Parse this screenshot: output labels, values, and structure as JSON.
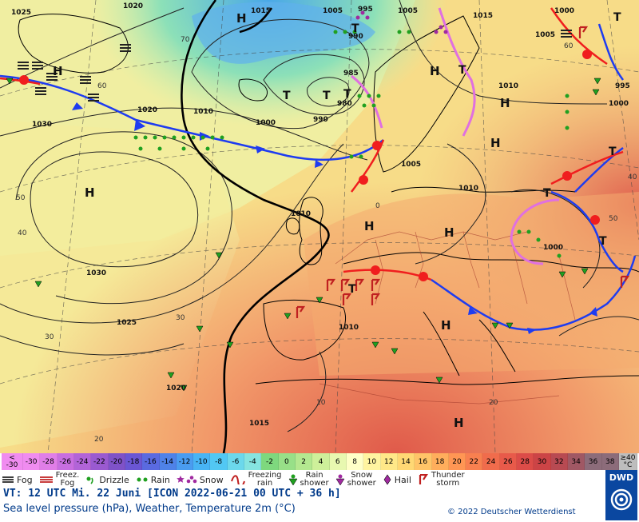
{
  "map": {
    "pressure_labels": [
      "1025",
      "1020",
      "1015",
      "1005",
      "995",
      "1005",
      "1015",
      "1000",
      "1005",
      "1010",
      "1020",
      "1010",
      "1000",
      "990",
      "985",
      "980",
      "990",
      "1005",
      "1010",
      "1000",
      "995",
      "1030",
      "1030",
      "1025",
      "1020",
      "1015",
      "1010",
      "1010",
      "1000"
    ],
    "high_symbol": "H",
    "low_symbol": "T",
    "latitude_labels": [
      "70",
      "60",
      "50",
      "40",
      "30",
      "30",
      "20",
      "10",
      "0",
      "20",
      "40",
      "50",
      "60"
    ]
  },
  "scale": {
    "colors": [
      "#f08cf0",
      "#e07ee8",
      "#c86ee0",
      "#b264d8",
      "#9a5ad0",
      "#7f52c8",
      "#6a56d4",
      "#5a6ae0",
      "#4f82e8",
      "#4a9cf0",
      "#48b4f4",
      "#52c8f4",
      "#6cd8ec",
      "#86e4e0",
      "#7ed87e",
      "#98e088",
      "#b4e890",
      "#cef09a",
      "#e8f8b0",
      "#ffffc8",
      "#fff4a0",
      "#ffe888",
      "#ffd874",
      "#ffc468",
      "#ffae5c",
      "#ff9654",
      "#f88050",
      "#f06c4c",
      "#e85a4a",
      "#dc4c48",
      "#cc4446",
      "#b84a52",
      "#a05864",
      "#8c6c7a"
    ],
    "values": [
      "-30",
      "-28",
      "-26",
      "-24",
      "-22",
      "-20",
      "-18",
      "-16",
      "-14",
      "-12",
      "-10",
      "-8",
      "-6",
      "-4",
      "-2",
      "0",
      "2",
      "4",
      "6",
      "8",
      "10",
      "12",
      "14",
      "16",
      "18",
      "20",
      "22",
      "24",
      "26",
      "28",
      "30",
      "32",
      "34",
      "36",
      "38"
    ],
    "low_end": [
      "<",
      "-30"
    ],
    "high_end": [
      "≥40",
      "°C"
    ]
  },
  "legend": {
    "fog": "Fog",
    "freezing_fog": [
      "Freez.",
      "Fog"
    ],
    "drizzle": "Drizzle",
    "rain": "Rain",
    "snow": "Snow",
    "freezing_rain": [
      "Freezing",
      "rain"
    ],
    "rain_shower": [
      "Rain",
      "shower"
    ],
    "snow_shower": [
      "Snow",
      "shower"
    ],
    "hail": "Hail",
    "thunderstorm": [
      "Thunder",
      "storm"
    ]
  },
  "footer": {
    "valid_time": "VT: 12 UTC Mi.  22 Juni [ICON 2022-06-21  00 UTC + 36 h]",
    "description": "Sea level pressure (hPa), Weather, Temperature 2m (°C)",
    "copyright": "© 2022 Deutscher Wetterdienst",
    "logo": "DWD"
  }
}
